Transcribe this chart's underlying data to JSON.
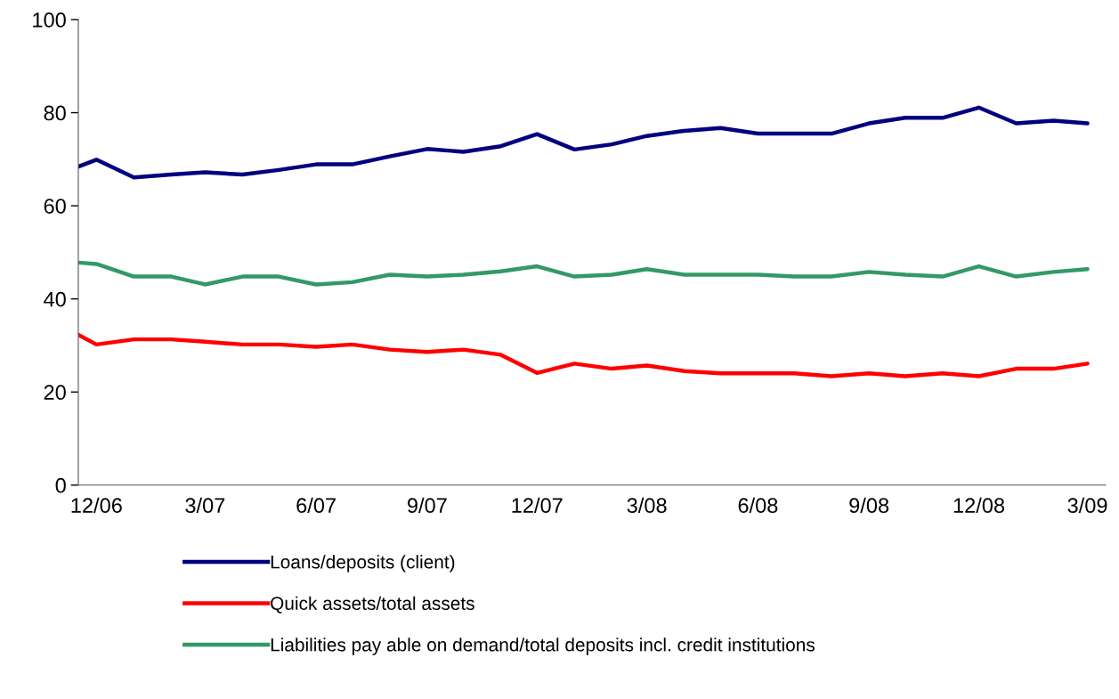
{
  "chart_data": {
    "type": "line",
    "x": [
      "2006-11-16",
      "2006-12",
      "2007-01",
      "2007-02",
      "2007-03",
      "2007-04",
      "2007-05",
      "2007-06",
      "2007-07",
      "2007-08",
      "2007-09",
      "2007-10",
      "2007-11",
      "2007-12",
      "2008-01",
      "2008-02",
      "2008-03",
      "2008-04",
      "2008-05",
      "2008-06",
      "2008-07",
      "2008-08",
      "2008-09",
      "2008-10",
      "2008-11",
      "2008-12",
      "2009-01",
      "2009-02",
      "2009-03"
    ],
    "xlim": [
      "2006-11-16",
      "2009-03-16"
    ],
    "xticks": [
      {
        "value": "2006-12",
        "label": "12/06"
      },
      {
        "value": "2007-03",
        "label": "3/07"
      },
      {
        "value": "2007-06",
        "label": "6/07"
      },
      {
        "value": "2007-09",
        "label": "9/07"
      },
      {
        "value": "2007-12",
        "label": "12/07"
      },
      {
        "value": "2008-03",
        "label": "3/08"
      },
      {
        "value": "2008-06",
        "label": "6/08"
      },
      {
        "value": "2008-09",
        "label": "9/08"
      },
      {
        "value": "2008-12",
        "label": "12/08"
      },
      {
        "value": "2009-03",
        "label": "3/09"
      }
    ],
    "ylim": [
      0,
      100
    ],
    "yticks": [
      0,
      20,
      40,
      60,
      80,
      100
    ],
    "grid": false,
    "legend": "bottom",
    "marker": "none",
    "line_style": "solid",
    "series": [
      {
        "name": "Loans/deposits (client)",
        "color": "#000080",
        "values": [
          68.4,
          69.9,
          66.1,
          66.7,
          67.2,
          66.7,
          67.7,
          68.9,
          68.9,
          70.6,
          72.2,
          71.6,
          72.8,
          75.4,
          72.1,
          73.2,
          75.0,
          76.1,
          76.7,
          75.5,
          75.5,
          75.5,
          77.7,
          78.9,
          78.9,
          81.1,
          77.7,
          78.3,
          77.7
        ]
      },
      {
        "name": "Quick assets/total assets",
        "color": "#ff0000",
        "values": [
          32.3,
          30.2,
          31.3,
          31.3,
          30.8,
          30.2,
          30.2,
          29.7,
          30.2,
          29.1,
          28.6,
          29.1,
          28.0,
          24.1,
          26.1,
          25.0,
          25.7,
          24.5,
          24.0,
          24.0,
          24.0,
          23.4,
          24.0,
          23.4,
          24.0,
          23.4,
          25.0,
          25.0,
          26.1
        ]
      },
      {
        "name": "Liabilities pay able on demand/total deposits incl. credit institutions",
        "color": "#339966",
        "values": [
          47.8,
          47.5,
          44.8,
          44.8,
          43.1,
          44.8,
          44.8,
          43.1,
          43.6,
          45.2,
          44.8,
          45.2,
          45.9,
          47.0,
          44.8,
          45.2,
          46.4,
          45.2,
          45.2,
          45.2,
          44.8,
          44.8,
          45.8,
          45.2,
          44.8,
          47.0,
          44.8,
          45.8,
          46.4
        ]
      }
    ]
  }
}
